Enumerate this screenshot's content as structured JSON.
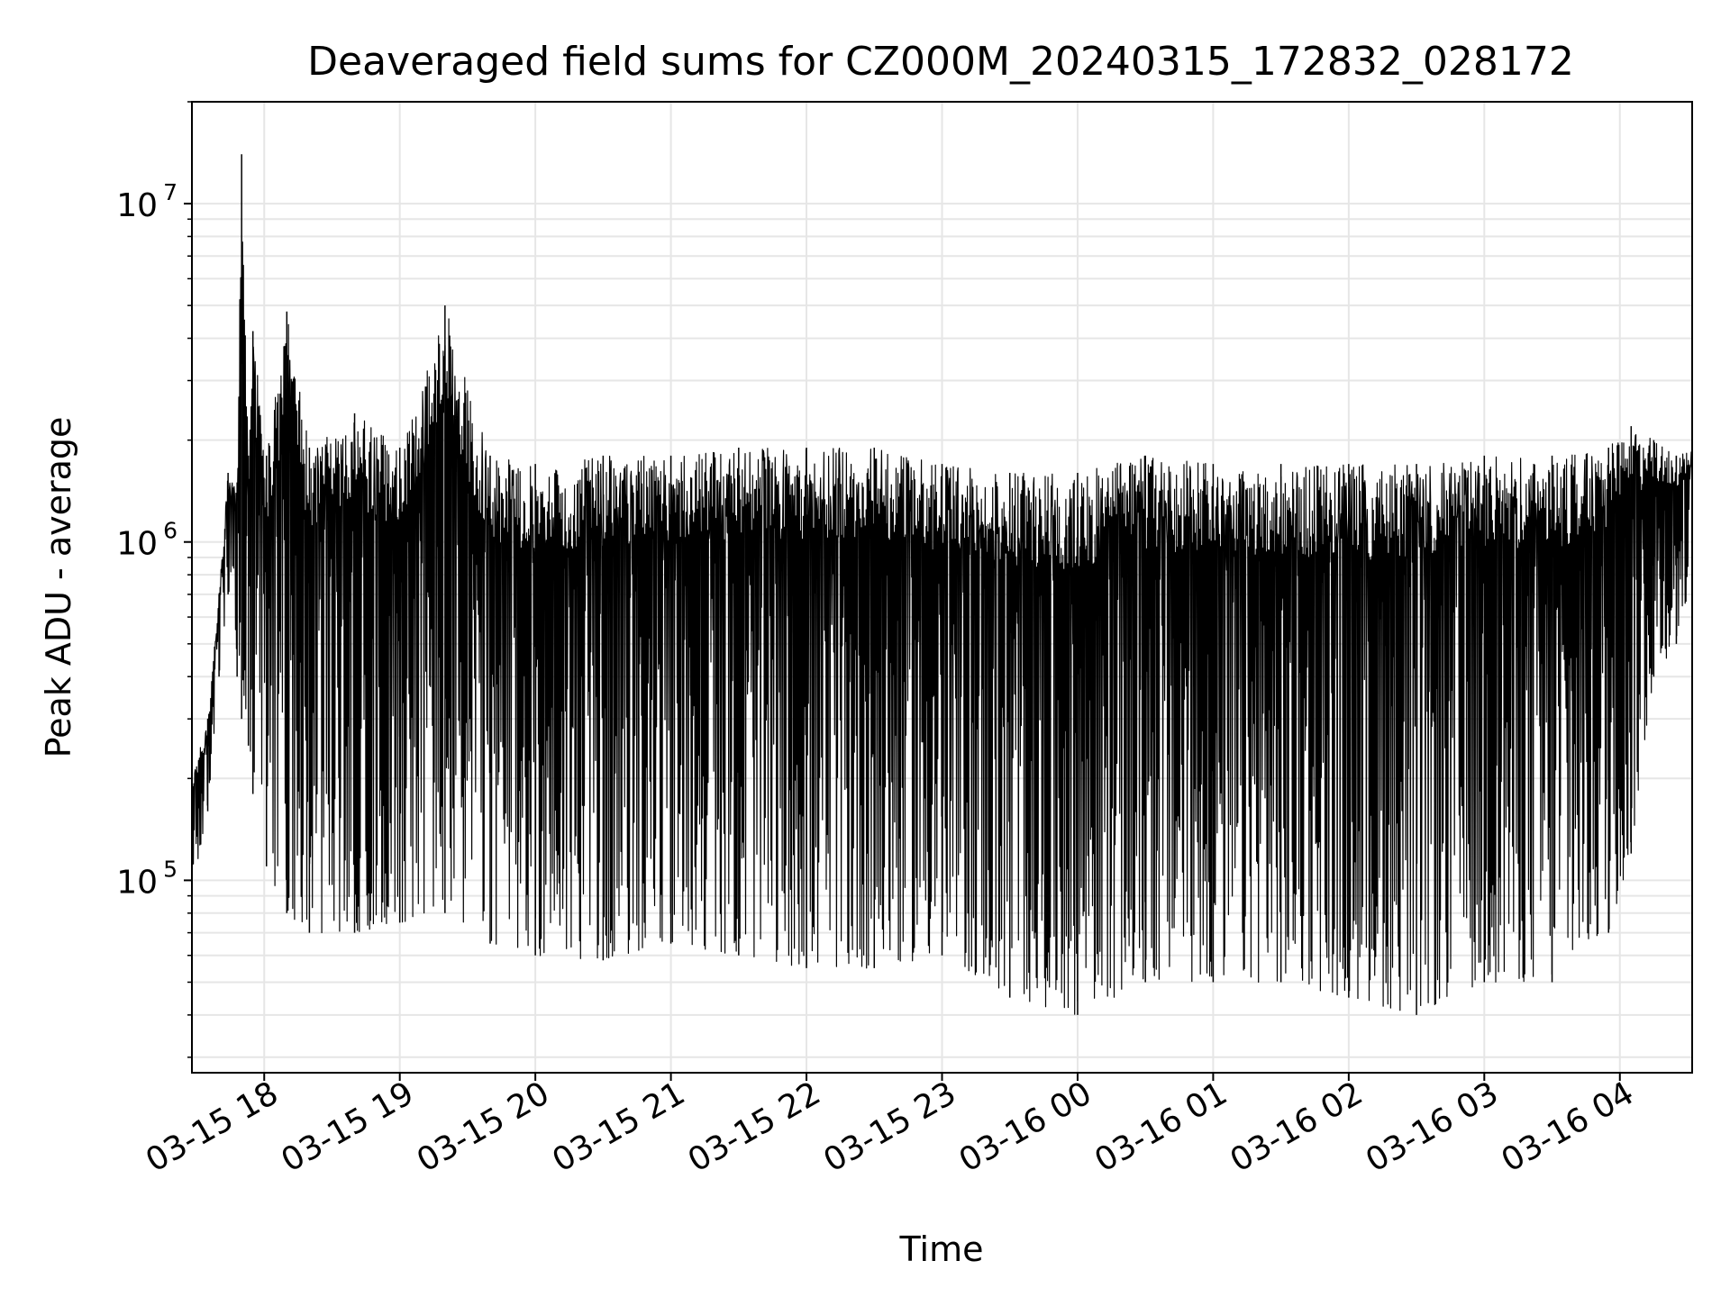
{
  "chart_data": {
    "type": "line",
    "title": "Deaveraged field sums for CZ000M_20240315_172832_028172",
    "xlabel": "Time",
    "ylabel": "Peak ADU - average",
    "yscale": "log",
    "ylim": [
      27000,
      20000000
    ],
    "xlim": [
      "2024-03-15 17:28",
      "2024-03-16 04:32"
    ],
    "grid": true,
    "line_color": "#000000",
    "grid_color": "#e6e6e6",
    "x_ticks": [
      {
        "value": "2024-03-15 18:00",
        "label": "03-15 18"
      },
      {
        "value": "2024-03-15 19:00",
        "label": "03-15 19"
      },
      {
        "value": "2024-03-15 20:00",
        "label": "03-15 20"
      },
      {
        "value": "2024-03-15 21:00",
        "label": "03-15 21"
      },
      {
        "value": "2024-03-15 22:00",
        "label": "03-15 22"
      },
      {
        "value": "2024-03-15 23:00",
        "label": "03-15 23"
      },
      {
        "value": "2024-03-16 00:00",
        "label": "03-16 00"
      },
      {
        "value": "2024-03-16 01:00",
        "label": "03-16 01"
      },
      {
        "value": "2024-03-16 02:00",
        "label": "03-16 02"
      },
      {
        "value": "2024-03-16 03:00",
        "label": "03-16 03"
      },
      {
        "value": "2024-03-16 04:00",
        "label": "03-16 04"
      }
    ],
    "y_ticks": [
      {
        "value": 100000,
        "base": "10",
        "exp": "5"
      },
      {
        "value": 1000000,
        "base": "10",
        "exp": "6"
      },
      {
        "value": 10000000,
        "base": "10",
        "exp": "7"
      }
    ],
    "series": [
      {
        "x": [
          "2024-03-15 17:28",
          "2024-03-15 17:35",
          "2024-03-15 17:40",
          "2024-03-15 17:44",
          "2024-03-15 17:48",
          "2024-03-15 17:50",
          "2024-03-15 17:53",
          "2024-03-15 17:55",
          "2024-03-15 18:01",
          "2024-03-15 18:10",
          "2024-03-15 18:20",
          "2024-03-15 18:40",
          "2024-03-15 19:00",
          "2024-03-15 19:20",
          "2024-03-15 19:40",
          "2024-03-15 20:00",
          "2024-03-15 20:30",
          "2024-03-15 21:00",
          "2024-03-15 21:30",
          "2024-03-15 22:00",
          "2024-03-15 22:30",
          "2024-03-15 23:00",
          "2024-03-15 23:30",
          "2024-03-16 00:00",
          "2024-03-16 00:30",
          "2024-03-16 01:00",
          "2024-03-16 01:30",
          "2024-03-16 02:00",
          "2024-03-16 02:30",
          "2024-03-16 03:00",
          "2024-03-16 03:30",
          "2024-03-16 03:55",
          "2024-03-16 04:05",
          "2024-03-16 04:15",
          "2024-03-16 04:25",
          "2024-03-16 04:32"
        ],
        "upper": [
          200000,
          300000,
          700000,
          1600000,
          1500000,
          14000000,
          1800000,
          4200000,
          1800000,
          4800000,
          1900000,
          2400000,
          1900000,
          5000000,
          1800000,
          1700000,
          1800000,
          1800000,
          1900000,
          1900000,
          1900000,
          1700000,
          1600000,
          1600000,
          1800000,
          1700000,
          1700000,
          1700000,
          1700000,
          1800000,
          1800000,
          1900000,
          2200000,
          2000000,
          1800000,
          1900000
        ],
        "lower": [
          90000,
          160000,
          400000,
          700000,
          400000,
          300000,
          250000,
          180000,
          110000,
          80000,
          70000,
          70000,
          75000,
          80000,
          65000,
          60000,
          58000,
          65000,
          60000,
          55000,
          55000,
          60000,
          45000,
          40000,
          50000,
          50000,
          50000,
          45000,
          40000,
          50000,
          50000,
          70000,
          120000,
          400000,
          500000,
          800000
        ]
      }
    ]
  }
}
